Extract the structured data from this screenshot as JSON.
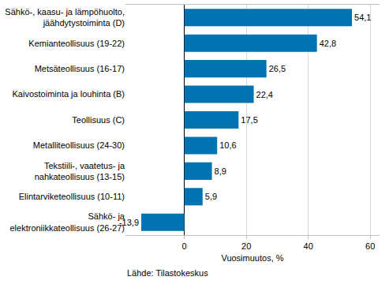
{
  "chart_data": {
    "type": "bar",
    "orientation": "horizontal",
    "categories": [
      "Sähkö-, kaasu- ja lämpöhuolto, jäähdytystoiminta (D)",
      "Kemianteollisuus (19-22)",
      "Metsäteollisuus (16-17)",
      "Kaivostoiminta ja louhinta (B)",
      "Teollisuus (C)",
      "Metalliteollisuus (24-30)",
      "Tekstiili-, vaatetus- ja nahkateollisuus (13-15)",
      "Elintarviketeollisuus (10-11)",
      "Sähkö- ja elektroniikkateollisuus (26-27)"
    ],
    "values": [
      54.1,
      42.8,
      26.5,
      22.4,
      17.5,
      10.6,
      8.9,
      5.9,
      -13.9
    ],
    "value_labels": [
      "54,1",
      "42,8",
      "26,5",
      "22,4",
      "17,5",
      "10,6",
      "8,9",
      "5,9",
      "-13,9"
    ],
    "data_labels": true,
    "color": "#0073b0",
    "x_label": "Vuosimuutos, %",
    "xlim": [
      -19,
      63
    ],
    "xticks": [
      0,
      20,
      40,
      60
    ],
    "grid": true,
    "source": "Lähde: Tilastokeskus"
  }
}
